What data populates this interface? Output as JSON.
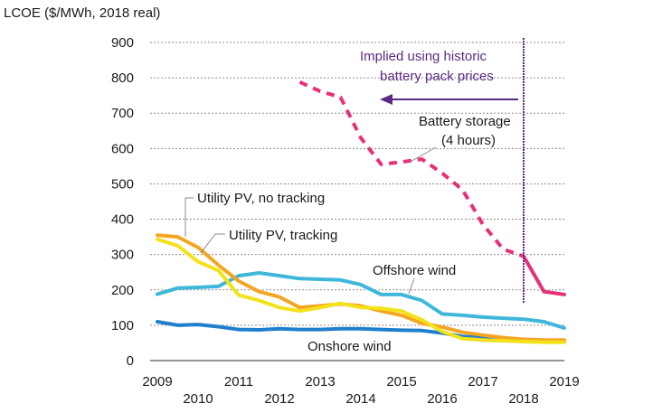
{
  "chart_data": {
    "type": "line",
    "ylabel": "LCOE ($/MWh, 2018 real)",
    "ylim": [
      0,
      900
    ],
    "yticks": [
      0,
      100,
      200,
      300,
      400,
      500,
      600,
      700,
      800,
      900
    ],
    "xlim": [
      2009,
      2019
    ],
    "xticks_upper": [
      "2009",
      "2011",
      "2013",
      "2015",
      "2017",
      "2019"
    ],
    "xticks_lower": [
      "2010",
      "2012",
      "2014",
      "2016",
      "2018"
    ],
    "grid": "horizontal dotted",
    "colors": {
      "battery": "#e6307a",
      "offshore": "#3fb7da",
      "onshore": "#1f7fcf",
      "pv_no_tracking": "#f4a623",
      "pv_tracking": "#f3e21a",
      "arrow": "#5b2a86"
    },
    "series": [
      {
        "key": "battery",
        "name": "Battery storage (4 hours)",
        "dashed": true,
        "points": [
          [
            2012.5,
            788
          ],
          [
            2013.0,
            762
          ],
          [
            2013.5,
            745
          ],
          [
            2014.0,
            630
          ],
          [
            2014.5,
            555
          ],
          [
            2015.0,
            562
          ],
          [
            2015.5,
            570
          ],
          [
            2016.0,
            530
          ],
          [
            2016.5,
            483
          ],
          [
            2017.0,
            385
          ],
          [
            2017.5,
            315
          ],
          [
            2018.0,
            295
          ]
        ]
      },
      {
        "key": "battery",
        "name": "Battery storage (4 hours)",
        "dashed": false,
        "points": [
          [
            2018.0,
            295
          ],
          [
            2018.5,
            195
          ],
          [
            2019.0,
            187
          ]
        ]
      },
      {
        "key": "offshore",
        "name": "Offshore wind",
        "points": [
          [
            2009.0,
            188
          ],
          [
            2009.5,
            205
          ],
          [
            2010.0,
            207
          ],
          [
            2010.5,
            210
          ],
          [
            2011.0,
            240
          ],
          [
            2011.5,
            248
          ],
          [
            2012.0,
            240
          ],
          [
            2012.5,
            232
          ],
          [
            2013.0,
            230
          ],
          [
            2013.5,
            228
          ],
          [
            2014.0,
            215
          ],
          [
            2014.5,
            187
          ],
          [
            2015.0,
            187
          ],
          [
            2015.5,
            170
          ],
          [
            2016.0,
            132
          ],
          [
            2016.5,
            128
          ],
          [
            2017.0,
            123
          ],
          [
            2017.5,
            120
          ],
          [
            2018.0,
            117
          ],
          [
            2018.5,
            110
          ],
          [
            2019.0,
            92
          ]
        ]
      },
      {
        "key": "onshore",
        "name": "Onshore wind",
        "points": [
          [
            2009.0,
            110
          ],
          [
            2009.5,
            100
          ],
          [
            2010.0,
            102
          ],
          [
            2010.5,
            96
          ],
          [
            2011.0,
            88
          ],
          [
            2011.5,
            87
          ],
          [
            2012.0,
            90
          ],
          [
            2012.5,
            88
          ],
          [
            2013.0,
            88
          ],
          [
            2013.5,
            90
          ],
          [
            2014.0,
            90
          ],
          [
            2014.5,
            88
          ],
          [
            2015.0,
            86
          ],
          [
            2015.5,
            85
          ],
          [
            2016.0,
            78
          ],
          [
            2016.5,
            68
          ],
          [
            2017.0,
            65
          ],
          [
            2017.5,
            60
          ],
          [
            2018.0,
            58
          ],
          [
            2018.5,
            55
          ],
          [
            2019.0,
            55
          ]
        ]
      },
      {
        "key": "pv_no_tracking",
        "name": "Utility PV, no tracking",
        "points": [
          [
            2009.0,
            355
          ],
          [
            2009.5,
            350
          ],
          [
            2010.0,
            320
          ],
          [
            2010.5,
            270
          ],
          [
            2011.0,
            225
          ],
          [
            2011.5,
            195
          ],
          [
            2012.0,
            180
          ],
          [
            2012.5,
            150
          ],
          [
            2013.0,
            155
          ],
          [
            2013.5,
            160
          ],
          [
            2014.0,
            155
          ],
          [
            2014.5,
            140
          ],
          [
            2015.0,
            128
          ],
          [
            2015.5,
            105
          ],
          [
            2016.0,
            95
          ],
          [
            2016.5,
            80
          ],
          [
            2017.0,
            72
          ],
          [
            2017.5,
            65
          ],
          [
            2018.0,
            60
          ],
          [
            2018.5,
            58
          ],
          [
            2019.0,
            58
          ]
        ]
      },
      {
        "key": "pv_tracking",
        "name": "Utility PV, tracking",
        "points": [
          [
            2009.0,
            343
          ],
          [
            2009.5,
            325
          ],
          [
            2010.0,
            280
          ],
          [
            2010.5,
            255
          ],
          [
            2011.0,
            185
          ],
          [
            2011.5,
            170
          ],
          [
            2012.0,
            150
          ],
          [
            2012.5,
            140
          ],
          [
            2013.0,
            150
          ],
          [
            2013.5,
            162
          ],
          [
            2014.0,
            150
          ],
          [
            2014.5,
            148
          ],
          [
            2015.0,
            140
          ],
          [
            2015.5,
            115
          ],
          [
            2016.0,
            82
          ],
          [
            2016.5,
            62
          ],
          [
            2017.0,
            58
          ],
          [
            2017.5,
            56
          ],
          [
            2018.0,
            54
          ],
          [
            2018.5,
            52
          ],
          [
            2019.0,
            52
          ]
        ]
      }
    ],
    "annotations": {
      "battery_line1": "Battery storage",
      "battery_line2": "(4 hours)",
      "offshore": "Offshore wind",
      "onshore": "Onshore wind",
      "pv_no_tracking": "Utility PV, no tracking",
      "pv_tracking": "Utility PV, tracking",
      "implied_line1": "Implied using historic",
      "implied_line2": "battery pack prices"
    },
    "divider_x": 2018.0
  }
}
